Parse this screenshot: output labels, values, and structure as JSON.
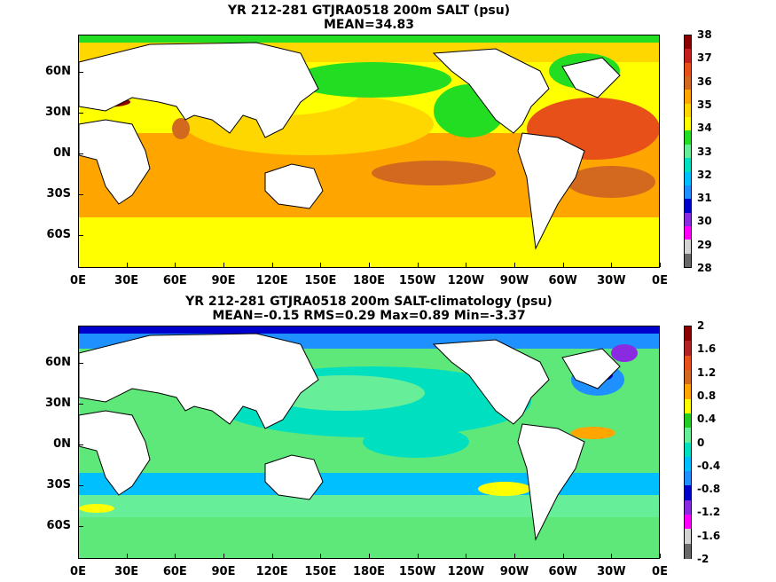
{
  "panels": [
    {
      "title_line1": "YR 212-281 GTJRA0518 200m SALT (psu)",
      "title_line2": "MEAN=34.83",
      "ocean_base": "#FFD400",
      "colorbar_labels": [
        "38",
        "37",
        "36",
        "35",
        "34",
        "33",
        "32",
        "31",
        "30",
        "29",
        "28"
      ],
      "colorbar_colors": [
        "#8B0000",
        "#C41E1E",
        "#E8501A",
        "#D2691E",
        "#FFA500",
        "#FFD700",
        "#FFFF00",
        "#22DD22",
        "#66EE99",
        "#00E0C0",
        "#00BFFF",
        "#1E90FF",
        "#0000CD",
        "#8A2BE2",
        "#FF00FF",
        "#D3D3D3",
        "#696969"
      ]
    },
    {
      "title_line1": "YR 212-281 GTJRA0518 200m SALT-climatology (psu)",
      "title_line2": "MEAN=-0.15   RMS=0.29   Max=0.89   Min=-3.37",
      "ocean_base": "#5FE87A",
      "colorbar_labels": [
        "2",
        "1.6",
        "1.2",
        "0.8",
        "0.4",
        "0",
        "-0.4",
        "-0.8",
        "-1.2",
        "-1.6",
        "-2"
      ],
      "colorbar_colors": [
        "#8B0000",
        "#B22222",
        "#E8501A",
        "#D2691E",
        "#FFA500",
        "#FFFF00",
        "#22CC22",
        "#66EE99",
        "#00E0C0",
        "#00BFFF",
        "#1E90FF",
        "#0000CD",
        "#8A2BE2",
        "#FF00FF",
        "#D3D3D3",
        "#696969"
      ]
    }
  ],
  "lat_labels": [
    "60N",
    "30N",
    "0N",
    "30S",
    "60S"
  ],
  "lon_labels": [
    "0E",
    "30E",
    "60E",
    "90E",
    "120E",
    "150E",
    "180E",
    "150W",
    "120W",
    "90W",
    "60W",
    "30W",
    "0E"
  ]
}
